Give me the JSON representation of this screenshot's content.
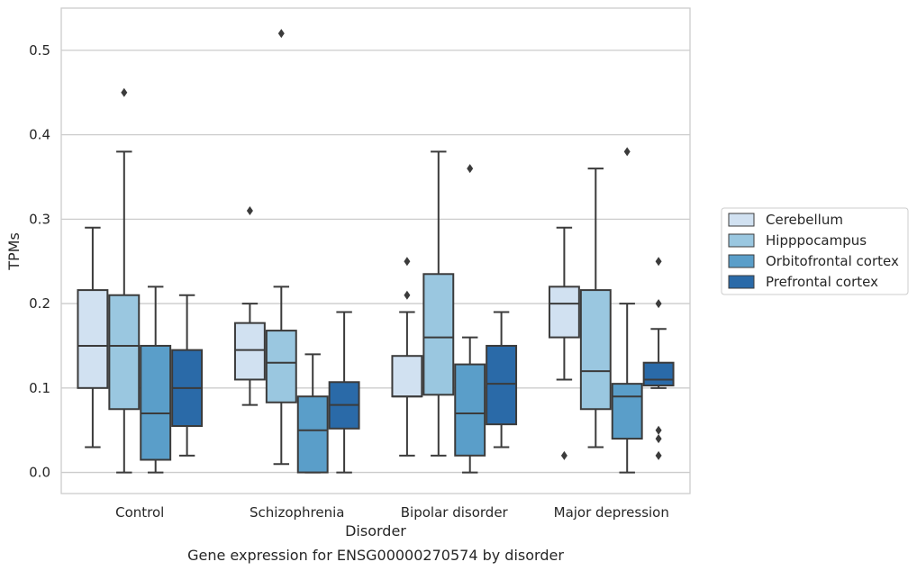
{
  "chart_data": {
    "type": "box",
    "title": "",
    "caption": "Gene expression for ENSG00000270574 by disorder",
    "xlabel": "Disorder",
    "ylabel": "TPMs",
    "ylim": [
      -0.025,
      0.55
    ],
    "yticks": [
      "0.0",
      "0.1",
      "0.2",
      "0.3",
      "0.4",
      "0.5"
    ],
    "grid": "horizontal",
    "legend_position": "right",
    "categories": [
      "Control",
      "Schizophrenia",
      "Bipolar disorder",
      "Major depression"
    ],
    "series": [
      {
        "name": "Cerebellum",
        "color": "#d1e1f1",
        "boxes": [
          {
            "whislo": 0.03,
            "q1": 0.1,
            "med": 0.15,
            "q3": 0.216,
            "whishi": 0.29,
            "fliers": []
          },
          {
            "whislo": 0.08,
            "q1": 0.11,
            "med": 0.145,
            "q3": 0.177,
            "whishi": 0.2,
            "fliers": [
              0.31
            ]
          },
          {
            "whislo": 0.02,
            "q1": 0.09,
            "med": 0.09,
            "q3": 0.138,
            "whishi": 0.19,
            "fliers": [
              0.21,
              0.25
            ]
          },
          {
            "whislo": 0.11,
            "q1": 0.16,
            "med": 0.2,
            "q3": 0.22,
            "whishi": 0.29,
            "fliers": [
              0.02
            ]
          }
        ]
      },
      {
        "name": "Hipppocampus",
        "color": "#9ac7e0",
        "boxes": [
          {
            "whislo": 0.0,
            "q1": 0.075,
            "med": 0.15,
            "q3": 0.21,
            "whishi": 0.38,
            "fliers": [
              0.45
            ]
          },
          {
            "whislo": 0.01,
            "q1": 0.083,
            "med": 0.13,
            "q3": 0.168,
            "whishi": 0.22,
            "fliers": [
              0.52
            ]
          },
          {
            "whislo": 0.02,
            "q1": 0.092,
            "med": 0.16,
            "q3": 0.235,
            "whishi": 0.38,
            "fliers": []
          },
          {
            "whislo": 0.03,
            "q1": 0.075,
            "med": 0.12,
            "q3": 0.216,
            "whishi": 0.36,
            "fliers": []
          }
        ]
      },
      {
        "name": "Orbitofrontal cortex",
        "color": "#5a9ec9",
        "boxes": [
          {
            "whislo": 0.0,
            "q1": 0.015,
            "med": 0.07,
            "q3": 0.15,
            "whishi": 0.22,
            "fliers": []
          },
          {
            "whislo": 0.0,
            "q1": 0.0,
            "med": 0.05,
            "q3": 0.09,
            "whishi": 0.14,
            "fliers": []
          },
          {
            "whislo": 0.0,
            "q1": 0.02,
            "med": 0.07,
            "q3": 0.128,
            "whishi": 0.16,
            "fliers": [
              0.36
            ]
          },
          {
            "whislo": 0.0,
            "q1": 0.04,
            "med": 0.09,
            "q3": 0.105,
            "whishi": 0.2,
            "fliers": [
              0.38
            ]
          }
        ]
      },
      {
        "name": "Prefrontal cortex",
        "color": "#2a6aa8",
        "boxes": [
          {
            "whislo": 0.02,
            "q1": 0.055,
            "med": 0.1,
            "q3": 0.145,
            "whishi": 0.21,
            "fliers": []
          },
          {
            "whislo": 0.0,
            "q1": 0.052,
            "med": 0.08,
            "q3": 0.107,
            "whishi": 0.19,
            "fliers": []
          },
          {
            "whislo": 0.03,
            "q1": 0.057,
            "med": 0.105,
            "q3": 0.15,
            "whishi": 0.19,
            "fliers": []
          },
          {
            "whislo": 0.1,
            "q1": 0.103,
            "med": 0.11,
            "q3": 0.13,
            "whishi": 0.17,
            "fliers": [
              0.02,
              0.04,
              0.05,
              0.2,
              0.25
            ]
          }
        ]
      }
    ]
  }
}
